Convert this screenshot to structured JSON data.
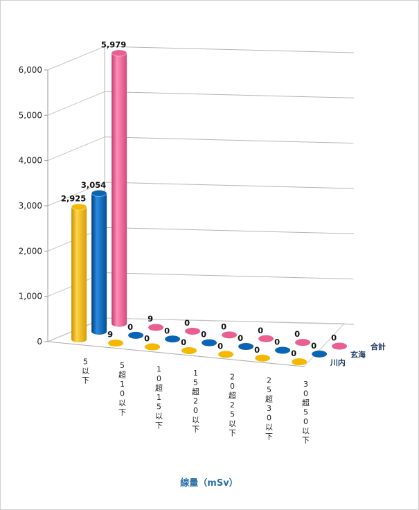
{
  "chart_data": {
    "type": "bar",
    "subtype": "3d-cylinder",
    "title": "",
    "xlabel": "線量（mSv）",
    "ylabel": "",
    "ylim": [
      0,
      6000
    ],
    "yticks": [
      "0",
      "1,000",
      "2,000",
      "3,000",
      "4,000",
      "5,000",
      "6,000"
    ],
    "categories": [
      "5以下",
      "5超10以下",
      "10超15以下",
      "15超20以下",
      "20超25以下",
      "25超30以下",
      "30超50以下"
    ],
    "series": [
      {
        "name": "川内",
        "color": "#f5b800",
        "values": [
          2925,
          9,
          0,
          0,
          0,
          0,
          0
        ],
        "labels": [
          "2,925",
          "9",
          "0",
          "0",
          "0",
          "0",
          "0"
        ]
      },
      {
        "name": "玄海",
        "color": "#0a64b4",
        "values": [
          3054,
          0,
          0,
          0,
          0,
          0,
          0
        ],
        "labels": [
          "3,054",
          "0",
          "0",
          "0",
          "0",
          "0",
          "0"
        ]
      },
      {
        "name": "合計",
        "color": "#ea5f90",
        "values": [
          5979,
          9,
          0,
          0,
          0,
          0,
          0
        ],
        "labels": [
          "5,979",
          "9",
          "0",
          "0",
          "0",
          "0",
          "0"
        ]
      }
    ],
    "grid": true,
    "legend": "depth-axis"
  }
}
